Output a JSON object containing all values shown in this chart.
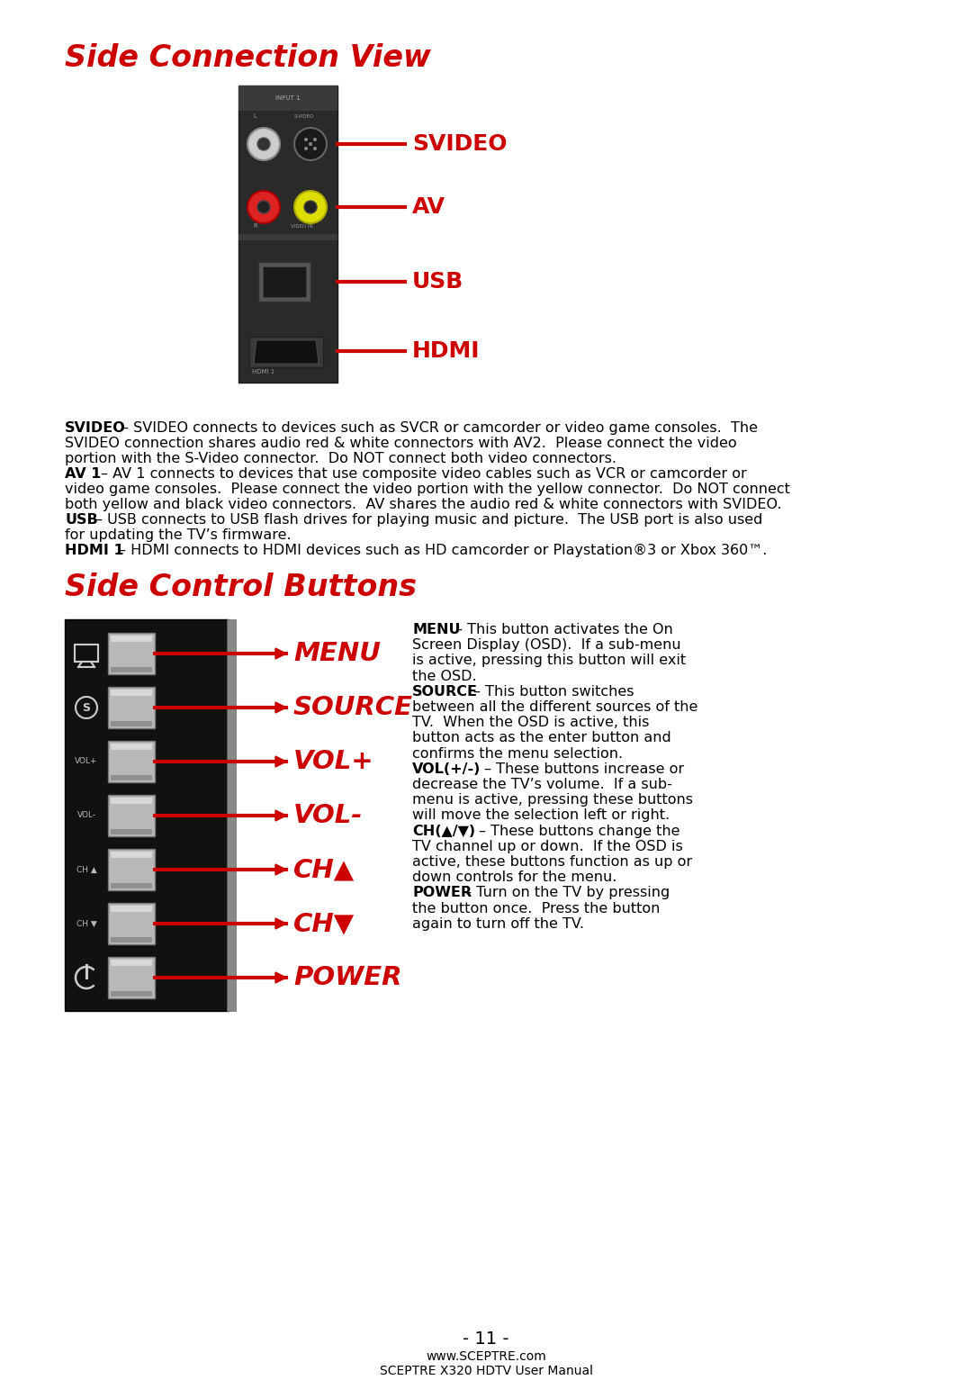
{
  "title1": "Side Connection View",
  "title2": "Side Control Buttons",
  "red_color": "#CC0000",
  "black_color": "#000000",
  "white_color": "#FFFFFF",
  "page_number": "- 11 -",
  "footer1": "www.SCEPTRE.com",
  "footer2": "SCEPTRE X320 HDTV User Manual",
  "connection_labels": [
    "SVIDEO",
    "AV",
    "USB",
    "HDMI"
  ],
  "button_labels": [
    "MENU",
    "SOURCE",
    "VOL+",
    "VOL-",
    "CH▲",
    "CH▼",
    "POWER"
  ]
}
